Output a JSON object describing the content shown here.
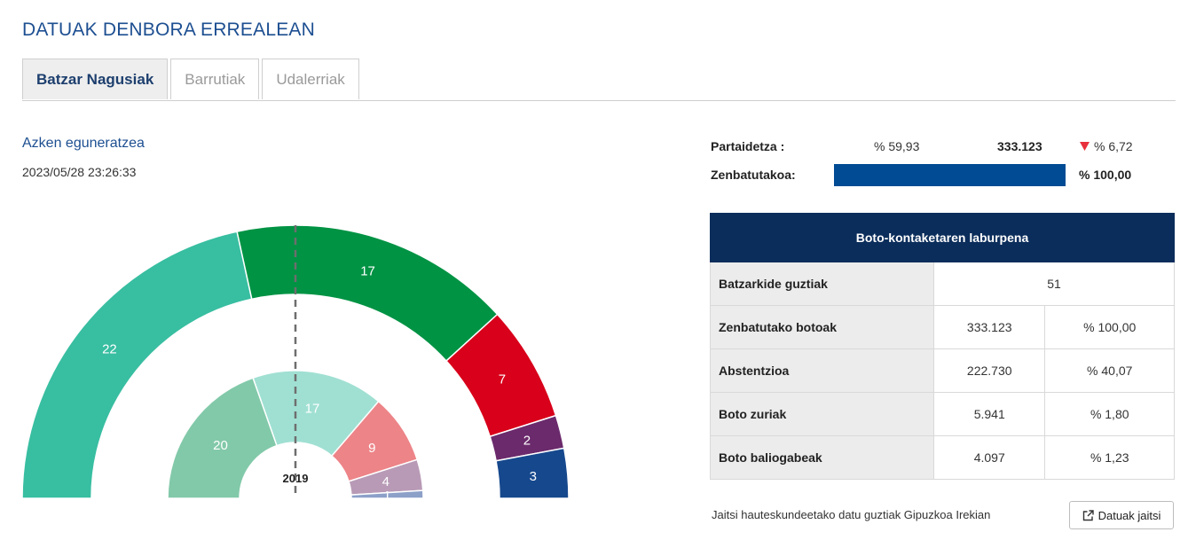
{
  "page": {
    "title": "DATUAK DENBORA ERREALEAN"
  },
  "tabs": [
    {
      "label": "Batzar Nagusiak",
      "active": true
    },
    {
      "label": "Barrutiak",
      "active": false
    },
    {
      "label": "Udalerriak",
      "active": false
    }
  ],
  "update": {
    "title": "Azken eguneratzea",
    "timestamp": "2023/05/28 23:26:33"
  },
  "participation": {
    "label": "Partaidetza :",
    "percent": "% 59,93",
    "votes": "333.123",
    "change": "% 6,72",
    "change_direction": "down",
    "change_color": "#e8303c",
    "counted_label": "Zenbatutakoa:",
    "counted_percent": "% 100,00",
    "counted_fraction": 1.0,
    "counted_bar_color": "#004b93"
  },
  "summary": {
    "header": "Boto-kontaketaren laburpena",
    "rows": [
      {
        "label": "Batzarkide guztiak",
        "value": "51",
        "percent": ""
      },
      {
        "label": "Zenbatutako botoak",
        "value": "333.123",
        "percent": "% 100,00"
      },
      {
        "label": "Abstentzioa",
        "value": "222.730",
        "percent": "% 40,07"
      },
      {
        "label": "Boto zuriak",
        "value": "5.941",
        "percent": "% 1,80"
      },
      {
        "label": "Boto baliogabeak",
        "value": "4.097",
        "percent": "% 1,23"
      }
    ]
  },
  "footer": {
    "text": "Jaitsi hauteskundeetako datu guztiak Gipuzkoa Irekian",
    "button_label": "Datuak jaitsi",
    "button_icon": "external-link-icon"
  },
  "chart_data": {
    "type": "pie",
    "total_seats": 51,
    "center_label": "2019",
    "outer_ring": {
      "values": [
        22,
        17,
        7,
        2,
        3
      ],
      "colors": [
        "#38bea1",
        "#009344",
        "#d8001a",
        "#6b2a6c",
        "#16488d"
      ]
    },
    "inner_ring": {
      "values": [
        20,
        17,
        9,
        4,
        1
      ],
      "colors": [
        "#82c9a9",
        "#a0e0d3",
        "#ed8488",
        "#b89ab6",
        "#8ca0c8"
      ]
    }
  }
}
